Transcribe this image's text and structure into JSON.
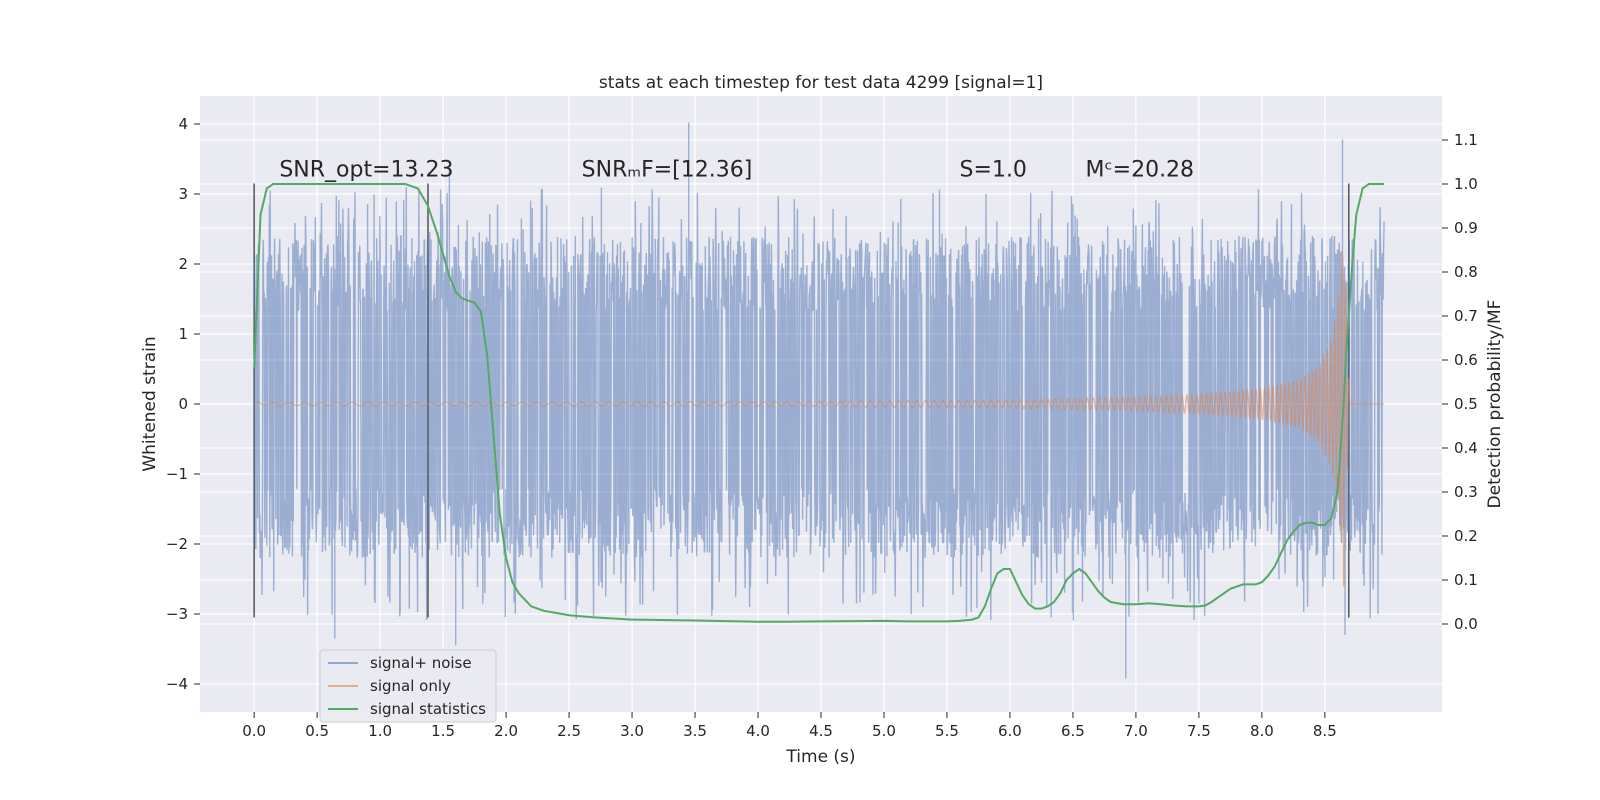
{
  "chart_data": {
    "type": "line",
    "title": "stats at each timestep for test data 4299 [signal=1]",
    "xlabel": "Time (s)",
    "ylabel": "Whitened strain",
    "ylabel_right": "Detection probability/MF",
    "xlim": [
      -0.43,
      9.43
    ],
    "ylim": [
      -4.4,
      4.4
    ],
    "ylim_right": [
      -0.2,
      1.2
    ],
    "xticks": [
      0.0,
      0.5,
      1.0,
      1.5,
      2.0,
      2.5,
      3.0,
      3.5,
      4.0,
      4.5,
      5.0,
      5.5,
      6.0,
      6.5,
      7.0,
      7.5,
      8.0,
      8.5
    ],
    "xtick_labels": [
      "0.0",
      "0.5",
      "1.0",
      "1.5",
      "2.0",
      "2.5",
      "3.0",
      "3.5",
      "4.0",
      "4.5",
      "5.0",
      "5.5",
      "6.0",
      "6.5",
      "7.0",
      "7.5",
      "8.0",
      "8.5"
    ],
    "yticks": [
      -4,
      -3,
      -2,
      -1,
      0,
      1,
      2,
      3,
      4
    ],
    "ytick_labels": [
      "−4",
      "−3",
      "−2",
      "−1",
      "0",
      "1",
      "2",
      "3",
      "4"
    ],
    "yticks_right": [
      0.0,
      0.1,
      0.2,
      0.3,
      0.4,
      0.5,
      0.6,
      0.7,
      0.8,
      0.9,
      1.0,
      1.1
    ],
    "ytick_labels_right": [
      "0.0",
      "0.1",
      "0.2",
      "0.3",
      "0.4",
      "0.5",
      "0.6",
      "0.7",
      "0.8",
      "0.9",
      "1.0",
      "1.1"
    ],
    "annotations": [
      {
        "text": "SNR_opt=13.23",
        "x": 0.2,
        "y": 3.25
      },
      {
        "text": "SNRₘF=[12.36]",
        "x": 2.6,
        "y": 3.25
      },
      {
        "text": "S=1.0",
        "x": 5.6,
        "y": 3.25
      },
      {
        "text": "Mᶜ=20.28",
        "x": 6.6,
        "y": 3.25
      }
    ],
    "vertical_markers": [
      {
        "x": 0.0,
        "y_from": -3.05,
        "y_to": 3.15
      },
      {
        "x": 1.38,
        "y_from": -3.05,
        "y_to": 3.15
      },
      {
        "x": 8.69,
        "y_from": -3.05,
        "y_to": 3.15
      }
    ],
    "series": [
      {
        "name": "signal+ noise",
        "color": "#4c72b0",
        "axis": "left",
        "typical_range": [
          -2.2,
          2.4
        ],
        "extreme_values": [
          {
            "x": 0.64,
            "y": -3.35
          },
          {
            "x": 1.55,
            "y": 3.38
          },
          {
            "x": 1.6,
            "y": -3.45
          },
          {
            "x": 3.45,
            "y": 4.02
          },
          {
            "x": 6.92,
            "y": -3.92
          },
          {
            "x": 8.64,
            "y": 3.78
          },
          {
            "x": 8.66,
            "y": -3.3
          }
        ]
      },
      {
        "name": "signal only",
        "color": "#dd8452",
        "axis": "left",
        "envelope": [
          {
            "x": 0.0,
            "y": 0.02
          },
          {
            "x": 4.0,
            "y": 0.03
          },
          {
            "x": 6.0,
            "y": 0.06
          },
          {
            "x": 7.0,
            "y": 0.1
          },
          {
            "x": 7.5,
            "y": 0.14
          },
          {
            "x": 8.0,
            "y": 0.22
          },
          {
            "x": 8.3,
            "y": 0.35
          },
          {
            "x": 8.45,
            "y": 0.55
          },
          {
            "x": 8.55,
            "y": 0.9
          },
          {
            "x": 8.6,
            "y": 1.4
          },
          {
            "x": 8.63,
            "y": 2.0
          },
          {
            "x": 8.65,
            "y": 2.8
          },
          {
            "x": 8.67,
            "y": 1.2
          },
          {
            "x": 8.7,
            "y": 0.0
          }
        ]
      },
      {
        "name": "signal statistics",
        "color": "#55a868",
        "axis": "right",
        "x": [
          0.0,
          0.05,
          0.1,
          0.15,
          0.2,
          0.3,
          0.4,
          0.5,
          0.7,
          0.9,
          1.0,
          1.1,
          1.2,
          1.3,
          1.38,
          1.45,
          1.5,
          1.55,
          1.6,
          1.65,
          1.7,
          1.75,
          1.8,
          1.85,
          1.9,
          1.95,
          2.0,
          2.05,
          2.1,
          2.15,
          2.2,
          2.3,
          2.4,
          2.5,
          2.7,
          3.0,
          3.5,
          4.0,
          4.2,
          4.5,
          5.0,
          5.2,
          5.5,
          5.6,
          5.7,
          5.75,
          5.8,
          5.85,
          5.9,
          5.95,
          6.0,
          6.05,
          6.1,
          6.15,
          6.2,
          6.25,
          6.3,
          6.35,
          6.4,
          6.45,
          6.5,
          6.55,
          6.6,
          6.65,
          6.7,
          6.75,
          6.8,
          6.9,
          7.0,
          7.1,
          7.2,
          7.3,
          7.4,
          7.5,
          7.55,
          7.6,
          7.65,
          7.7,
          7.75,
          7.8,
          7.85,
          7.9,
          7.95,
          8.0,
          8.05,
          8.1,
          8.15,
          8.2,
          8.25,
          8.3,
          8.35,
          8.4,
          8.45,
          8.5,
          8.55,
          8.6,
          8.62,
          8.65,
          8.67,
          8.7,
          8.72,
          8.75,
          8.8,
          8.85,
          8.9,
          8.97
        ],
        "values": [
          0.58,
          0.93,
          0.99,
          1.0,
          1.0,
          1.0,
          1.0,
          1.0,
          1.0,
          1.0,
          1.0,
          1.0,
          1.0,
          0.99,
          0.95,
          0.89,
          0.84,
          0.79,
          0.755,
          0.74,
          0.735,
          0.73,
          0.71,
          0.61,
          0.43,
          0.25,
          0.15,
          0.095,
          0.07,
          0.055,
          0.04,
          0.03,
          0.025,
          0.02,
          0.015,
          0.01,
          0.008,
          0.005,
          0.005,
          0.006,
          0.007,
          0.006,
          0.006,
          0.007,
          0.01,
          0.015,
          0.04,
          0.08,
          0.115,
          0.125,
          0.125,
          0.095,
          0.065,
          0.045,
          0.035,
          0.035,
          0.04,
          0.05,
          0.07,
          0.1,
          0.115,
          0.125,
          0.115,
          0.095,
          0.075,
          0.06,
          0.05,
          0.045,
          0.045,
          0.047,
          0.045,
          0.042,
          0.04,
          0.04,
          0.042,
          0.05,
          0.06,
          0.07,
          0.08,
          0.085,
          0.09,
          0.09,
          0.09,
          0.095,
          0.11,
          0.13,
          0.16,
          0.19,
          0.21,
          0.225,
          0.23,
          0.23,
          0.225,
          0.225,
          0.24,
          0.3,
          0.38,
          0.5,
          0.62,
          0.74,
          0.83,
          0.93,
          0.99,
          1.0,
          1.0,
          1.0
        ]
      }
    ],
    "legend": {
      "position": "lower-left",
      "entries": [
        "signal+ noise",
        "signal only",
        "signal statistics"
      ]
    },
    "grid": true
  }
}
